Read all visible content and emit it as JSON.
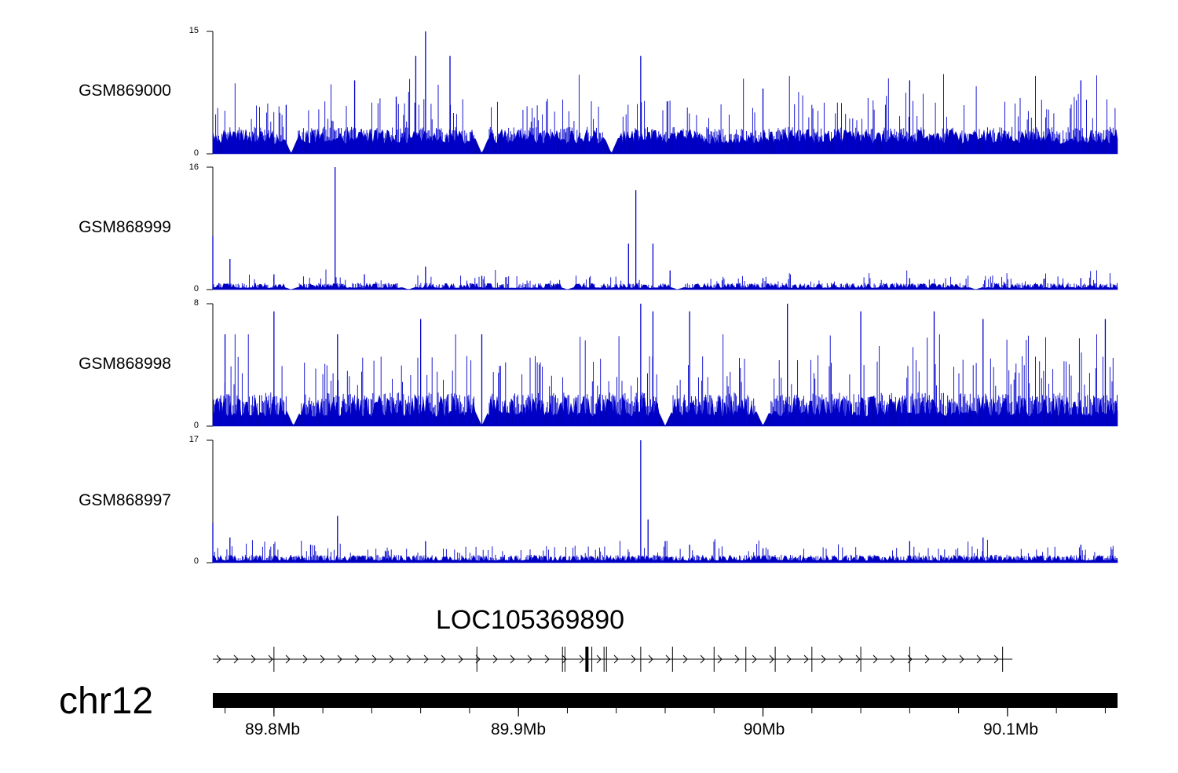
{
  "colors": {
    "signal": "#0000cc",
    "signal_fill": "#0000b8",
    "ideogram": "#000000",
    "axis": "#000000"
  },
  "chart_data": {
    "type": "area",
    "chromosome": "chr12",
    "x_unit": "Mb",
    "xlim": [
      89.775,
      90.145
    ],
    "axis_ticks": [
      89.8,
      89.9,
      90.0,
      90.1
    ],
    "axis_tick_labels": [
      "89.8Mb",
      "89.9Mb",
      "90Mb",
      "90.1Mb"
    ],
    "axis_minor_step": 0.02,
    "tracks": [
      {
        "name": "GSM869000",
        "ylim": [
          0,
          15
        ],
        "ymax_label": "15",
        "ymin_label": "0",
        "baseline": 2,
        "base_level": 3,
        "noise_density": 0.82,
        "peaks": [
          [
            89.805,
            6
          ],
          [
            89.833,
            9
          ],
          [
            89.85,
            7
          ],
          [
            89.858,
            12
          ],
          [
            89.862,
            15
          ],
          [
            89.872,
            12
          ],
          [
            89.95,
            12
          ],
          [
            90.0,
            8
          ],
          [
            90.06,
            9
          ],
          [
            90.13,
            9
          ]
        ],
        "gaps": [
          89.807,
          89.885,
          89.938
        ]
      },
      {
        "name": "GSM868999",
        "ylim": [
          0,
          16
        ],
        "ymax_label": "16",
        "ymin_label": "0",
        "baseline": 0.3,
        "base_level": 0.8,
        "noise_density": 0.55,
        "peaks": [
          [
            89.775,
            7
          ],
          [
            89.782,
            4
          ],
          [
            89.8,
            2
          ],
          [
            89.825,
            16
          ],
          [
            89.837,
            2
          ],
          [
            89.862,
            3
          ],
          [
            89.885,
            1.8
          ],
          [
            89.948,
            13
          ],
          [
            89.945,
            6
          ],
          [
            89.955,
            6
          ],
          [
            89.962,
            2.5
          ],
          [
            90.0,
            1.5
          ],
          [
            90.06,
            1.5
          ],
          [
            90.13,
            1.5
          ]
        ],
        "gaps": [
          89.807,
          89.855,
          89.92,
          89.965,
          90.087
        ]
      },
      {
        "name": "GSM868998",
        "ylim": [
          0,
          8
        ],
        "ymax_label": "8",
        "ymin_label": "0",
        "baseline": 1,
        "base_level": 2,
        "noise_density": 0.85,
        "peaks": [
          [
            89.78,
            6
          ],
          [
            89.8,
            7.5
          ],
          [
            89.826,
            6
          ],
          [
            89.86,
            7
          ],
          [
            89.885,
            6
          ],
          [
            89.95,
            8
          ],
          [
            89.955,
            7.5
          ],
          [
            89.97,
            7.5
          ],
          [
            90.01,
            8
          ],
          [
            90.04,
            7.5
          ],
          [
            90.07,
            7.5
          ],
          [
            90.09,
            7
          ],
          [
            90.14,
            7
          ]
        ],
        "gaps": [
          89.808,
          89.885,
          89.96,
          90.0
        ]
      },
      {
        "name": "GSM868997",
        "ylim": [
          0,
          17
        ],
        "ymax_label": "17",
        "ymin_label": "0",
        "baseline": 0.4,
        "base_level": 1.0,
        "noise_density": 0.6,
        "peaks": [
          [
            89.775,
            5.5
          ],
          [
            89.782,
            3.5
          ],
          [
            89.815,
            2.5
          ],
          [
            89.826,
            6.5
          ],
          [
            89.862,
            3
          ],
          [
            89.95,
            17
          ],
          [
            89.953,
            6
          ],
          [
            89.96,
            3
          ],
          [
            89.97,
            2.5
          ],
          [
            90.0,
            2
          ],
          [
            90.06,
            3
          ],
          [
            90.09,
            3.5
          ],
          [
            90.13,
            2.5
          ]
        ],
        "gaps": []
      }
    ],
    "gene": {
      "name": "LOC105369890",
      "start": 89.775,
      "end": 90.102,
      "exons": [
        89.8,
        89.883,
        89.918,
        89.919,
        89.928,
        89.93,
        89.935,
        89.936,
        89.95,
        89.963,
        89.98,
        89.993,
        90.005,
        90.02,
        90.04,
        90.06,
        90.098
      ],
      "major_exon": 89.928,
      "strand": "+"
    }
  }
}
